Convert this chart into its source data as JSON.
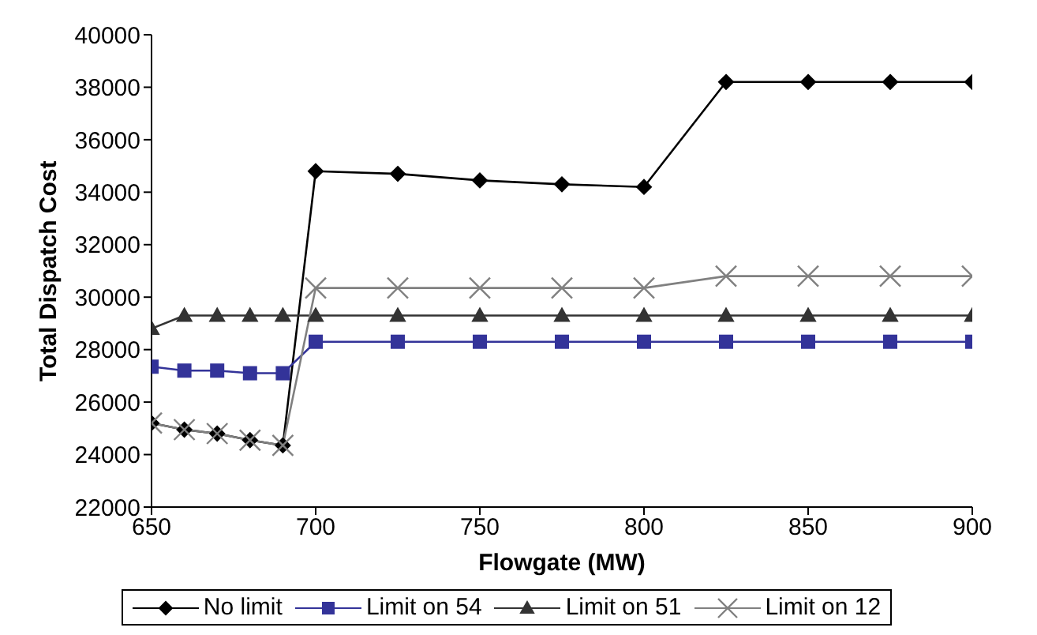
{
  "chart_data": {
    "type": "line",
    "xlabel": "Flowgate (MW)",
    "ylabel": "Total Dispatch Cost",
    "x": [
      650,
      660,
      670,
      680,
      690,
      700,
      725,
      750,
      775,
      800,
      825,
      850,
      875,
      900
    ],
    "series": [
      {
        "name": "No limit",
        "color": "#000000",
        "marker": "diamond",
        "values": [
          25200,
          24950,
          24800,
          24550,
          24350,
          34800,
          34700,
          34450,
          34300,
          34200,
          38200,
          38200,
          38200,
          38200
        ]
      },
      {
        "name": "Limit on 54",
        "color": "#333399",
        "marker": "square",
        "values": [
          27350,
          27200,
          27200,
          27100,
          27100,
          28300,
          28300,
          28300,
          28300,
          28300,
          28300,
          28300,
          28300,
          28300
        ]
      },
      {
        "name": "Limit on 51",
        "color": "#333333",
        "marker": "triangle",
        "values": [
          28800,
          29300,
          29300,
          29300,
          29300,
          29300,
          29300,
          29300,
          29300,
          29300,
          29300,
          29300,
          29300,
          29300
        ]
      },
      {
        "name": "Limit on 12",
        "color": "#808080",
        "marker": "cross",
        "values": [
          25200,
          24950,
          24800,
          24550,
          24350,
          30350,
          30350,
          30350,
          30350,
          30350,
          30800,
          30800,
          30800,
          30800
        ]
      }
    ],
    "xlim": [
      650,
      900
    ],
    "xticks": [
      650,
      700,
      750,
      800,
      850,
      900
    ],
    "ylim": [
      22000,
      40000
    ],
    "yticks": [
      22000,
      24000,
      26000,
      28000,
      30000,
      32000,
      34000,
      36000,
      38000,
      40000
    ],
    "grid": false,
    "legend": "bottom",
    "line_style": "solid"
  }
}
